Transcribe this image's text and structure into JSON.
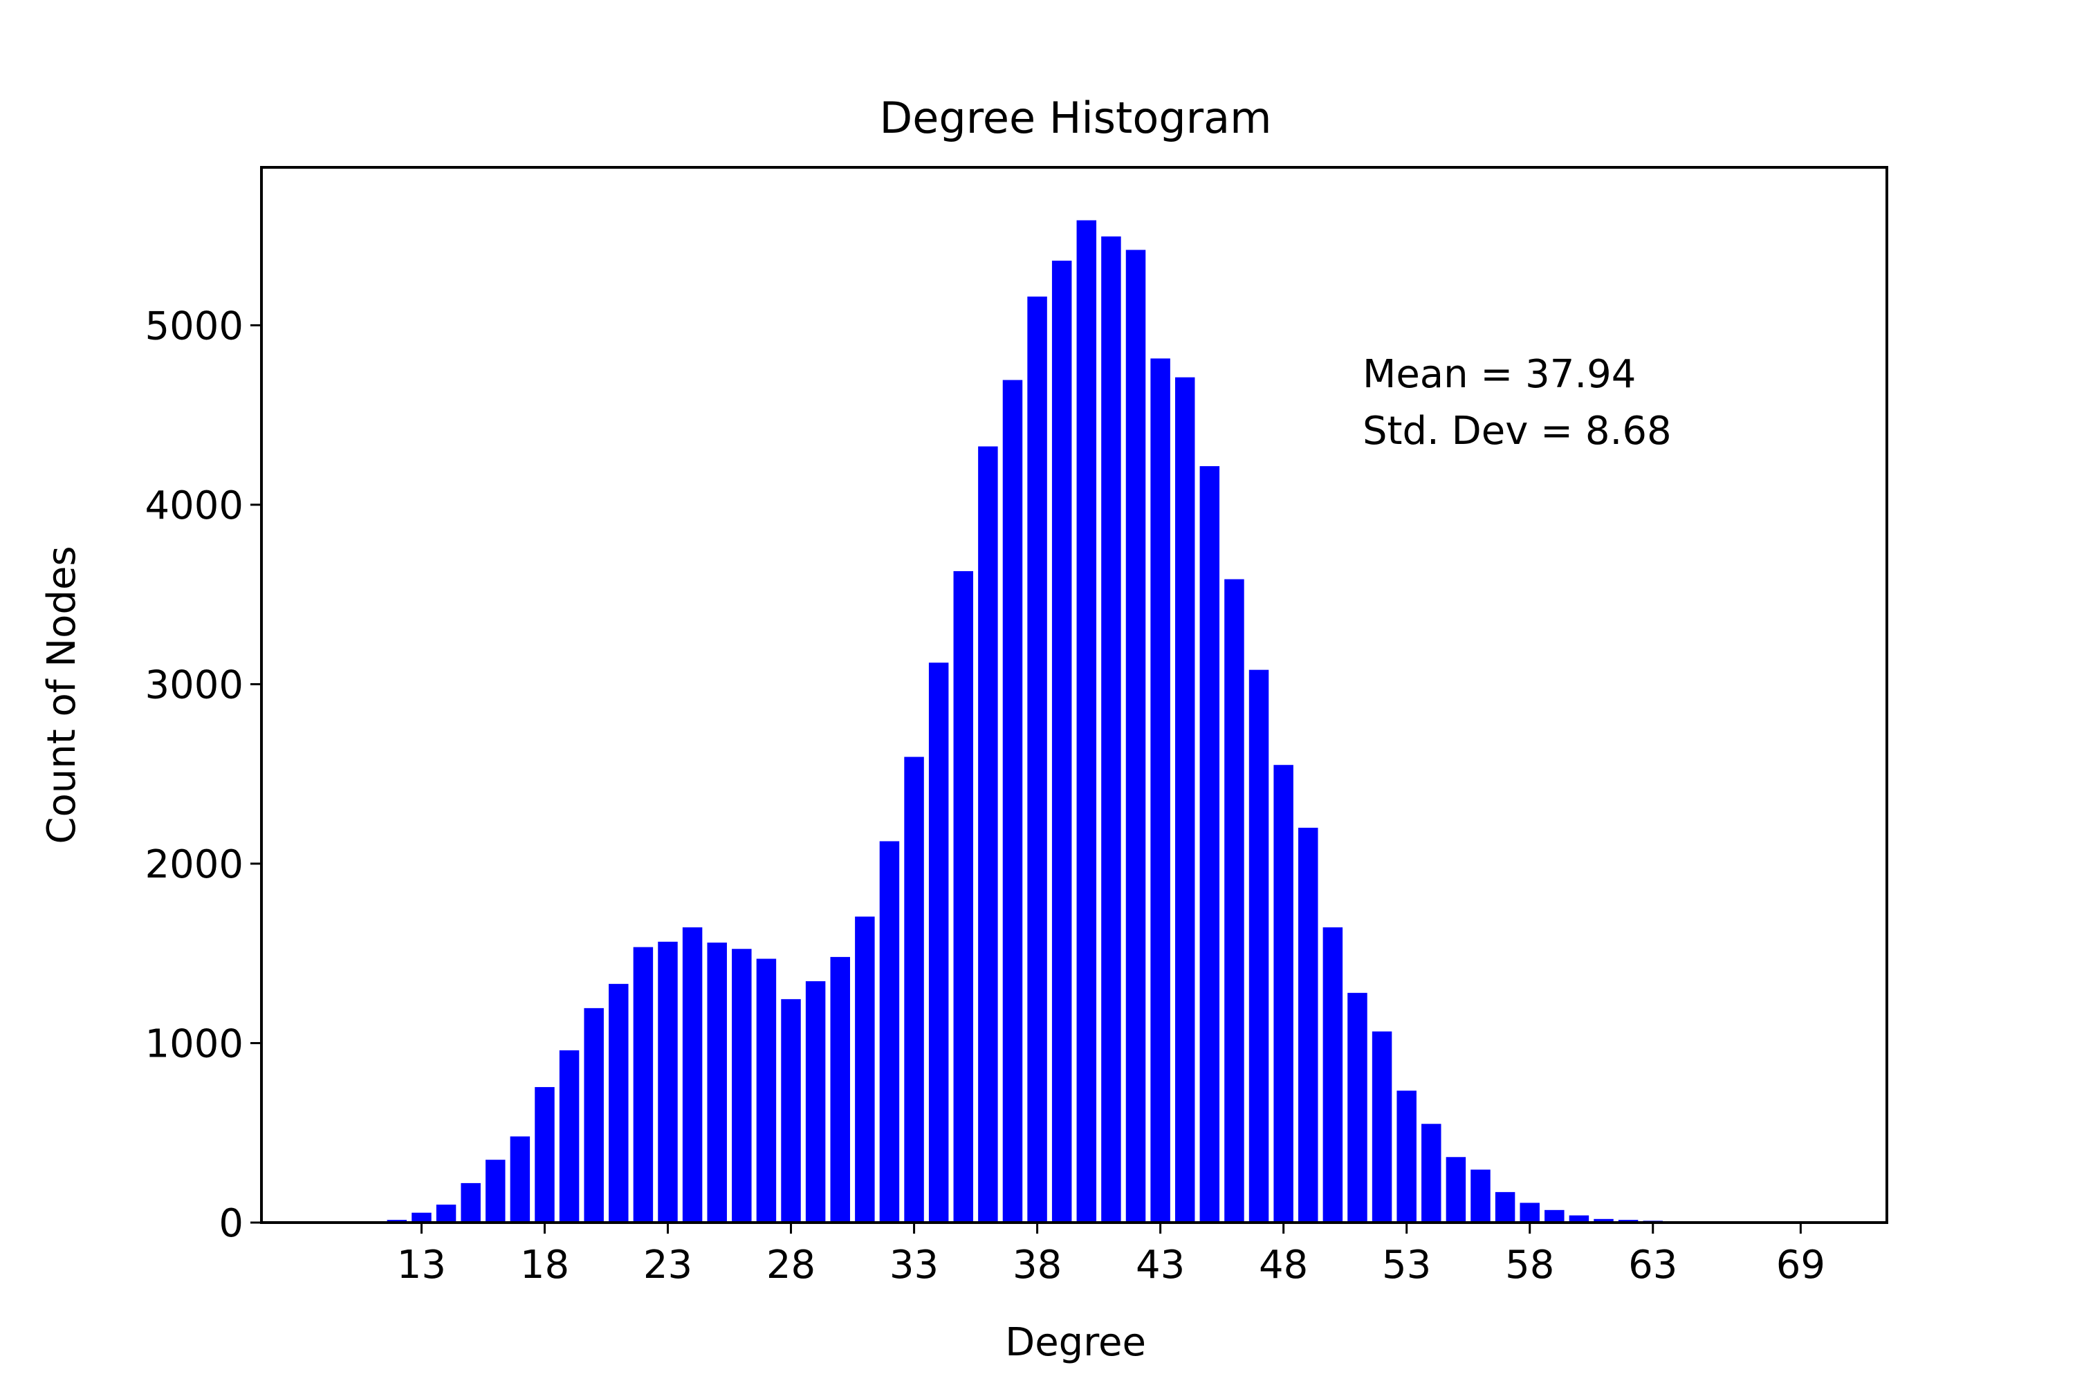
{
  "chart_data": {
    "type": "bar",
    "title": "Degree Histogram",
    "xlabel": "Degree",
    "ylabel": "Count of Nodes",
    "bar_color": "#0000ff",
    "xlim": [
      6.5,
      72.5
    ],
    "ylim": [
      0,
      5880
    ],
    "x_ticks": [
      13,
      18,
      23,
      28,
      33,
      38,
      43,
      48,
      53,
      58,
      63,
      69
    ],
    "x_tick_labels": [
      "13",
      "18",
      "23",
      "28",
      "33",
      "38",
      "43",
      "48",
      "53",
      "58",
      "63",
      "69"
    ],
    "y_ticks": [
      0,
      1000,
      2000,
      3000,
      4000,
      5000
    ],
    "y_tick_labels": [
      "0",
      "1000",
      "2000",
      "3000",
      "4000",
      "5000"
    ],
    "grid": false,
    "annotations": [
      "Mean = 37.94",
      "Std. Dev = 8.68"
    ],
    "x": [
      12,
      13,
      14,
      15,
      16,
      17,
      18,
      19,
      20,
      21,
      22,
      23,
      24,
      25,
      26,
      27,
      28,
      29,
      30,
      31,
      32,
      33,
      34,
      35,
      36,
      37,
      38,
      39,
      40,
      41,
      42,
      43,
      44,
      45,
      46,
      47,
      48,
      49,
      50,
      51,
      52,
      53,
      54,
      55,
      56,
      57,
      58,
      59,
      60,
      61,
      62,
      63,
      64,
      65,
      66,
      67,
      68,
      69,
      70
    ],
    "values": [
      15,
      55,
      100,
      220,
      350,
      480,
      755,
      960,
      1195,
      1330,
      1535,
      1565,
      1645,
      1560,
      1525,
      1470,
      1245,
      1345,
      1480,
      1705,
      2125,
      2595,
      3120,
      3630,
      4325,
      4695,
      5160,
      5360,
      5585,
      5495,
      5420,
      4815,
      4710,
      4215,
      3585,
      3080,
      2550,
      2200,
      1645,
      1280,
      1065,
      735,
      550,
      365,
      295,
      170,
      110,
      70,
      40,
      20,
      15,
      10,
      5,
      3,
      2,
      2,
      1,
      1,
      1
    ]
  }
}
